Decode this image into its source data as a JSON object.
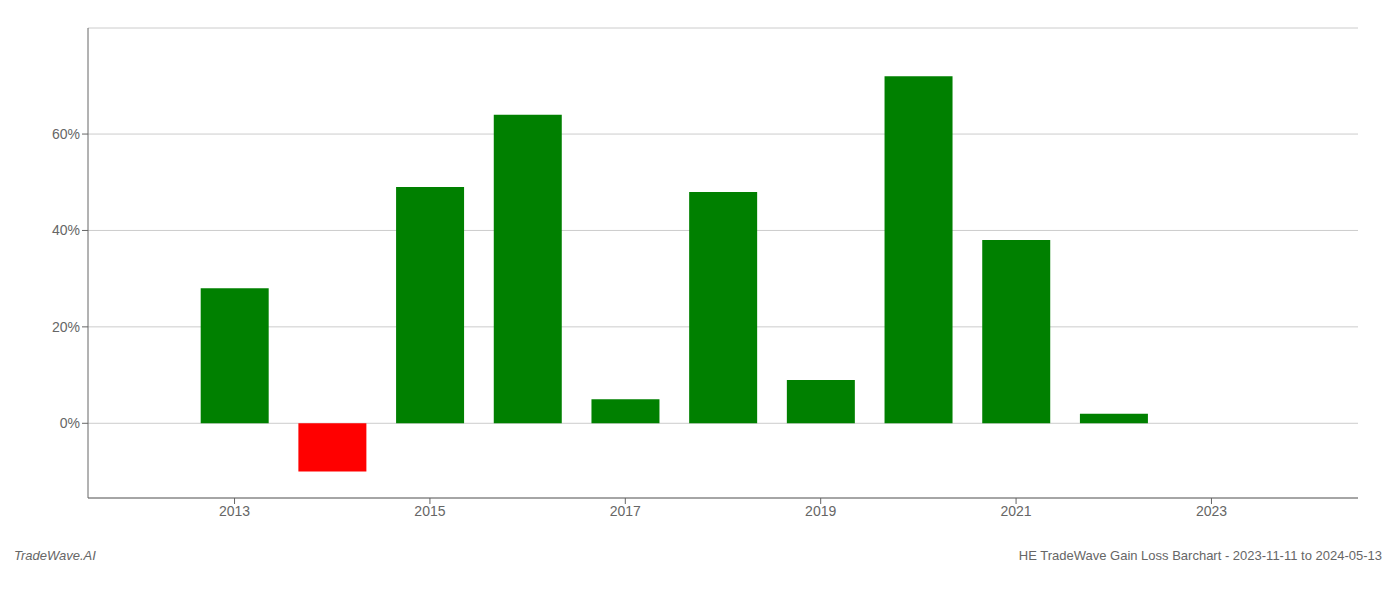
{
  "chart_data": {
    "type": "bar",
    "categories": [
      2013,
      2014,
      2015,
      2016,
      2017,
      2018,
      2019,
      2020,
      2021,
      2022
    ],
    "values": [
      0.28,
      -0.1,
      0.49,
      0.64,
      0.05,
      0.48,
      0.09,
      0.72,
      0.38,
      0.02
    ],
    "colors": [
      "#008000",
      "#ff0000",
      "#008000",
      "#008000",
      "#008000",
      "#008000",
      "#008000",
      "#008000",
      "#008000",
      "#008000"
    ],
    "xlim": [
      2011.5,
      2024.5
    ],
    "xticks": [
      2013,
      2015,
      2017,
      2019,
      2021,
      2023
    ],
    "ylim": [
      -0.155,
      0.82
    ],
    "yticks": [
      {
        "value": 0.0,
        "label": "0%"
      },
      {
        "value": 0.2,
        "label": "20%"
      },
      {
        "value": 0.4,
        "label": "40%"
      },
      {
        "value": 0.6,
        "label": "60%"
      }
    ],
    "grid": true,
    "annotations": [
      "TradeWave.AI",
      "HE TradeWave Gain Loss Barchart - 2023-11-11 to 2024-05-13"
    ]
  }
}
